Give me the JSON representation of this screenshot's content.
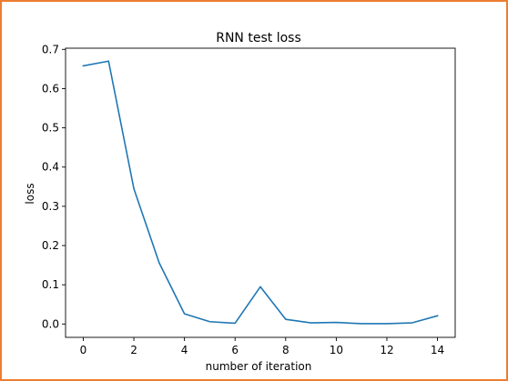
{
  "frame": {
    "border_color": "#ed7d31"
  },
  "chart_data": {
    "type": "line",
    "title": "RNN test loss",
    "xlabel": "number of iteration",
    "ylabel": "loss",
    "x": [
      0,
      1,
      2,
      3,
      4,
      5,
      6,
      7,
      8,
      9,
      10,
      11,
      12,
      13,
      14
    ],
    "series": [
      {
        "color": "#1f77b4",
        "values": [
          0.658,
          0.67,
          0.345,
          0.156,
          0.026,
          0.006,
          0.002,
          0.095,
          0.012,
          0.003,
          0.004,
          0.001,
          0.001,
          0.003,
          0.021
        ]
      }
    ],
    "xlim": [
      -0.7,
      14.7
    ],
    "ylim": [
      -0.034,
      0.703
    ],
    "xticks": [
      "0",
      "2",
      "4",
      "6",
      "8",
      "10",
      "12",
      "14"
    ],
    "yticks": [
      "0.0",
      "0.1",
      "0.2",
      "0.3",
      "0.4",
      "0.5",
      "0.6",
      "0.7"
    ],
    "grid": false
  }
}
